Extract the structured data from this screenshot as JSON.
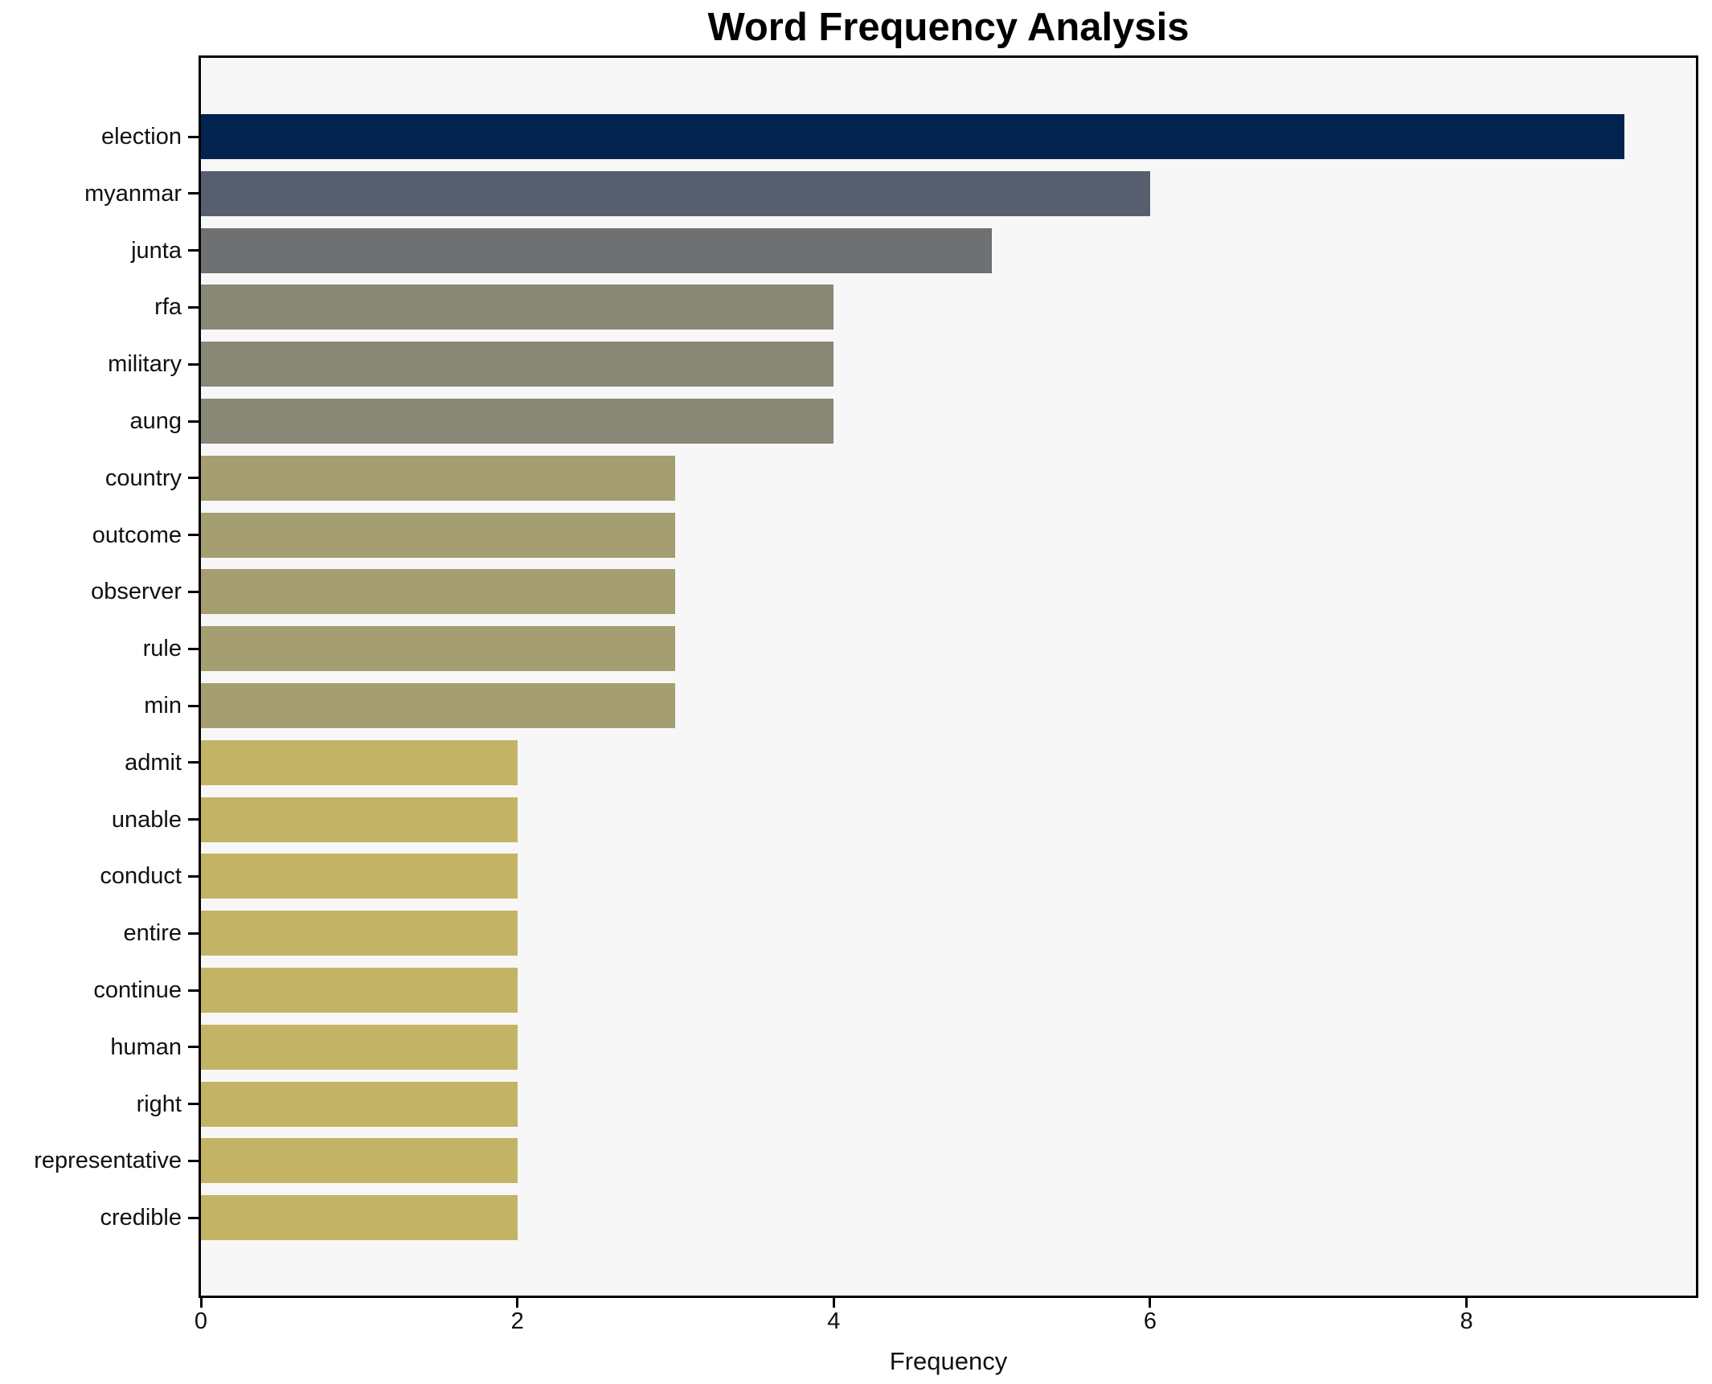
{
  "title": "Word Frequency Analysis",
  "chart_data": {
    "type": "bar",
    "orientation": "horizontal",
    "title": "Word Frequency Analysis",
    "xlabel": "Frequency",
    "ylabel": "",
    "categories": [
      "election",
      "myanmar",
      "junta",
      "rfa",
      "military",
      "aung",
      "country",
      "outcome",
      "observer",
      "rule",
      "min",
      "admit",
      "unable",
      "conduct",
      "entire",
      "continue",
      "human",
      "right",
      "representative",
      "credible"
    ],
    "values": [
      9,
      6,
      5,
      4,
      4,
      4,
      3,
      3,
      3,
      3,
      3,
      2,
      2,
      2,
      2,
      2,
      2,
      2,
      2,
      2
    ],
    "bar_colors": [
      "#02234e",
      "#575f6e",
      "#6f7071",
      "#898877",
      "#898877",
      "#898877",
      "#a49e71",
      "#a49e71",
      "#a49e71",
      "#a49e71",
      "#a49e71",
      "#c2b464",
      "#c2b464",
      "#c2b464",
      "#c2b464",
      "#c2b464",
      "#c2b464",
      "#c2b464",
      "#c2b464",
      "#c2b464"
    ],
    "x_ticks": [
      0,
      2,
      4,
      6,
      8
    ],
    "xlim": [
      0,
      9.45
    ],
    "grid": false,
    "legend": "none",
    "plot_background": "#f7f7f8",
    "figure_background": "#ffffff",
    "spine_color": "#000000",
    "text_color": "#111111"
  }
}
